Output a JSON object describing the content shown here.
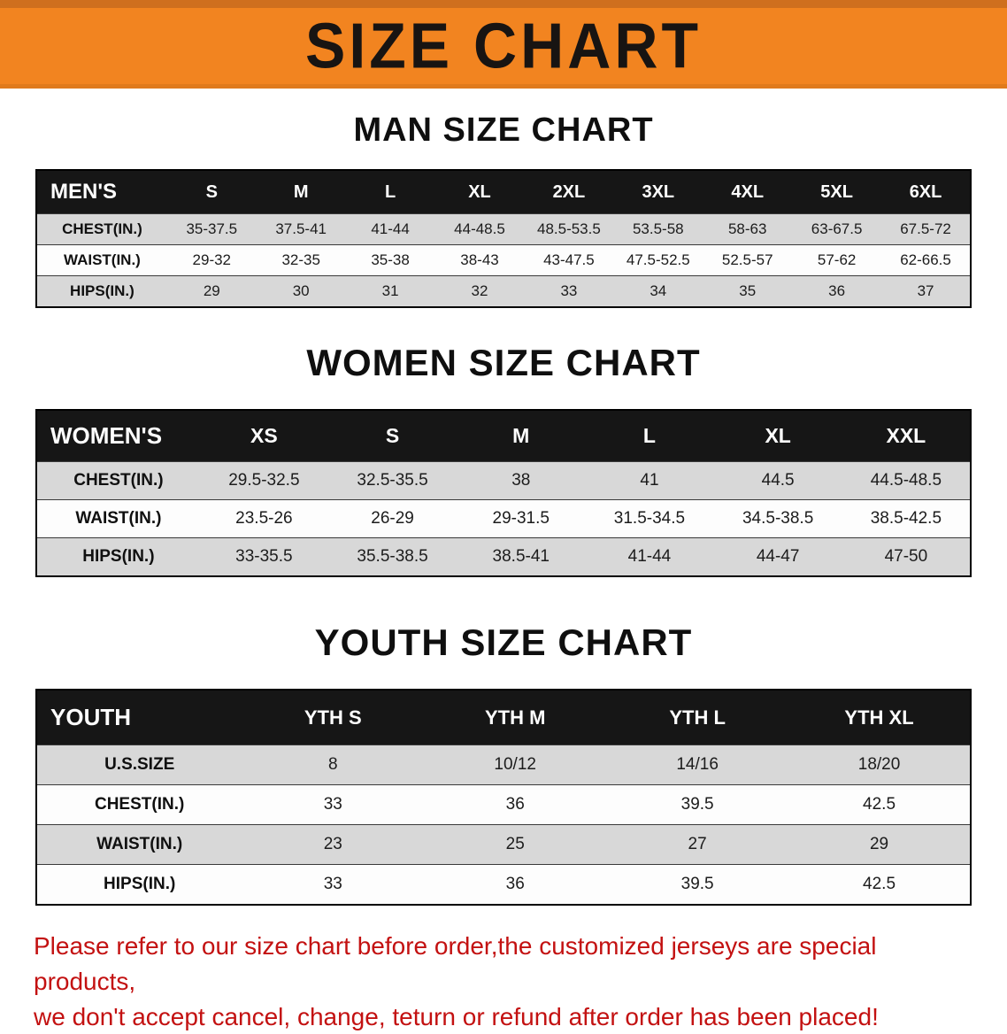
{
  "banner": {
    "title": "SIZE CHART"
  },
  "sections": [
    {
      "heading": "MAN SIZE CHART",
      "table": {
        "header": [
          "MEN'S",
          "S",
          "M",
          "L",
          "XL",
          "2XL",
          "3XL",
          "4XL",
          "5XL",
          "6XL"
        ],
        "rows": [
          [
            "CHEST(IN.)",
            "35-37.5",
            "37.5-41",
            "41-44",
            "44-48.5",
            "48.5-53.5",
            "53.5-58",
            "58-63",
            "63-67.5",
            "67.5-72"
          ],
          [
            "WAIST(IN.)",
            "29-32",
            "32-35",
            "35-38",
            "38-43",
            "43-47.5",
            "47.5-52.5",
            "52.5-57",
            "57-62",
            "62-66.5"
          ],
          [
            "HIPS(IN.)",
            "29",
            "30",
            "31",
            "32",
            "33",
            "34",
            "35",
            "36",
            "37"
          ]
        ]
      }
    },
    {
      "heading": "WOMEN SIZE CHART",
      "table": {
        "header": [
          "WOMEN'S",
          "XS",
          "S",
          "M",
          "L",
          "XL",
          "XXL"
        ],
        "rows": [
          [
            "CHEST(IN.)",
            "29.5-32.5",
            "32.5-35.5",
            "38",
            "41",
            "44.5",
            "44.5-48.5"
          ],
          [
            "WAIST(IN.)",
            "23.5-26",
            "26-29",
            "29-31.5",
            "31.5-34.5",
            "34.5-38.5",
            "38.5-42.5"
          ],
          [
            "HIPS(IN.)",
            "33-35.5",
            "35.5-38.5",
            "38.5-41",
            "41-44",
            "44-47",
            "47-50"
          ]
        ]
      }
    },
    {
      "heading": "YOUTH SIZE CHART",
      "table": {
        "header": [
          "YOUTH",
          "YTH S",
          "YTH M",
          "YTH L",
          "YTH XL"
        ],
        "rows": [
          [
            "U.S.SIZE",
            "8",
            "10/12",
            "14/16",
            "18/20"
          ],
          [
            "CHEST(IN.)",
            "33",
            "36",
            "39.5",
            "42.5"
          ],
          [
            "WAIST(IN.)",
            "23",
            "25",
            "27",
            "29"
          ],
          [
            "HIPS(IN.)",
            "33",
            "36",
            "39.5",
            "42.5"
          ]
        ]
      }
    }
  ],
  "disclaimer": {
    "line1": "Please refer to our size chart before order,the customized jerseys are special products,",
    "line2": "we don't accept cancel, change, teturn or refund after order has been placed!"
  },
  "colors": {
    "banner_bg": "#f28420",
    "table_header_bg": "#161616",
    "row_alt_gray": "#d8d8d8",
    "disclaimer_red": "#c31111"
  }
}
